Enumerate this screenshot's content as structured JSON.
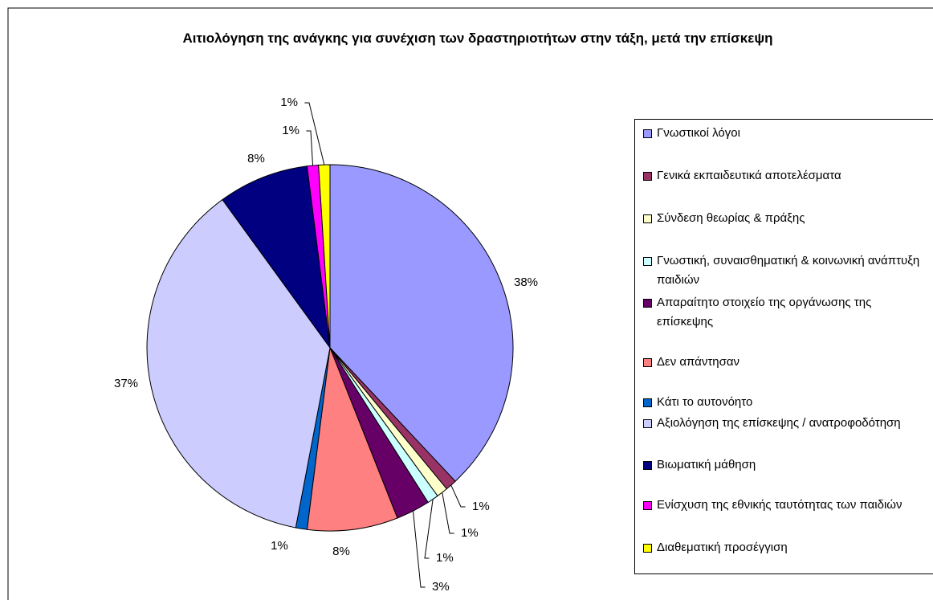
{
  "chart_data": {
    "type": "pie",
    "title": "Αιτιολόγηση της ανάγκης για συνέχιση των δραστηριοτήτων στην τάξη, μετά την επίσκεψη",
    "categories": [
      "Γνωστικοί λόγοι",
      "Γενικά εκπαιδευτικά αποτελέσματα",
      "Σύνδεση θεωρίας & πράξης",
      "Γνωστική, συναισθηματική & κοινωνική ανάπτυξη παιδιών",
      "Απαραίτητο στοιχείο της οργάνωσης της επίσκεψης",
      "Δεν απάντησαν",
      "Κάτι το αυτονόητο",
      "Αξιολόγηση της επίσκεψης / ανατροφοδότηση",
      "Βιωματική μάθηση",
      "Ενίσχυση της εθνικής ταυτότητας των παιδιών",
      "Διαθεματική προσέγγιση"
    ],
    "values": [
      38,
      1,
      1,
      1,
      3,
      8,
      1,
      37,
      8,
      1,
      1
    ],
    "value_labels": [
      "38%",
      "1%",
      "1%",
      "1%",
      "3%",
      "8%",
      "1%",
      "37%",
      "8%",
      "1%",
      "1%"
    ],
    "colors": [
      "#9999ff",
      "#993366",
      "#ffffcc",
      "#ccffff",
      "#660066",
      "#ff8080",
      "#0066cc",
      "#ccccff",
      "#000080",
      "#ff00ff",
      "#ffff00"
    ],
    "legend": "right"
  }
}
